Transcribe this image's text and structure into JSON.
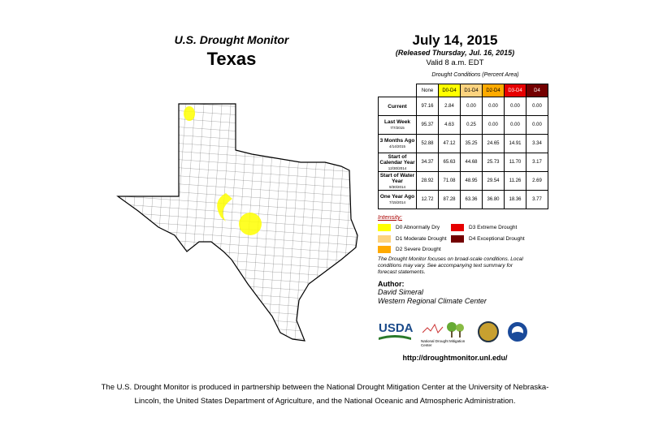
{
  "header": {
    "title": "U.S. Drought Monitor",
    "state": "Texas",
    "date": "July 14, 2015",
    "released": "(Released Thursday, Jul. 16, 2015)",
    "valid": "Valid 8 a.m. EDT"
  },
  "table": {
    "caption": "Drought Conditions (Percent Area)",
    "columns": [
      "None",
      "D0-D4",
      "D1-D4",
      "D2-D4",
      "D3-D4",
      "D4"
    ],
    "rows": [
      {
        "label": "Current",
        "values": [
          "97.16",
          "2.84",
          "0.00",
          "0.00",
          "0.00",
          "0.00"
        ]
      },
      {
        "label": "Last Week",
        "date": "7/7/2015",
        "values": [
          "95.37",
          "4.63",
          "0.25",
          "0.00",
          "0.00",
          "0.00"
        ]
      },
      {
        "label": "3 Months Ago",
        "date": "4/14/2015",
        "values": [
          "52.88",
          "47.12",
          "35.25",
          "24.65",
          "14.91",
          "3.34"
        ]
      },
      {
        "label": "Start of Calendar Year",
        "date": "12/30/2014",
        "values": [
          "34.37",
          "65.63",
          "44.68",
          "25.73",
          "11.70",
          "3.17"
        ]
      },
      {
        "label": "Start of Water Year",
        "date": "9/30/2014",
        "values": [
          "28.92",
          "71.08",
          "48.95",
          "29.54",
          "11.26",
          "2.69"
        ]
      },
      {
        "label": "One Year Ago",
        "date": "7/15/2014",
        "values": [
          "12.72",
          "87.28",
          "63.36",
          "36.80",
          "18.36",
          "3.77"
        ]
      }
    ]
  },
  "legend": {
    "title": "Intensity:",
    "items": [
      "D0 Abnormally Dry",
      "D1 Moderate Drought",
      "D2 Severe Drought",
      "D3 Extreme Drought",
      "D4 Exceptional Drought"
    ]
  },
  "note": "The Drought Monitor focuses on broad-scale conditions. Local conditions may vary. See accompanying text summary for forecast statements.",
  "author": {
    "heading": "Author:",
    "name": "David Simeral",
    "org": "Western Regional Climate Center"
  },
  "logos": {
    "usda": "USDA",
    "ndmc": "National Drought Mitigation Center"
  },
  "url": "http://droughtmonitor.unl.edu/",
  "footer": "The U.S. Drought Monitor is produced in partnership between the National Drought Mitigation Center at the University of Nebraska-Lincoln, the United States Department of Agriculture, and the National Oceanic and Atmospheric Administration."
}
